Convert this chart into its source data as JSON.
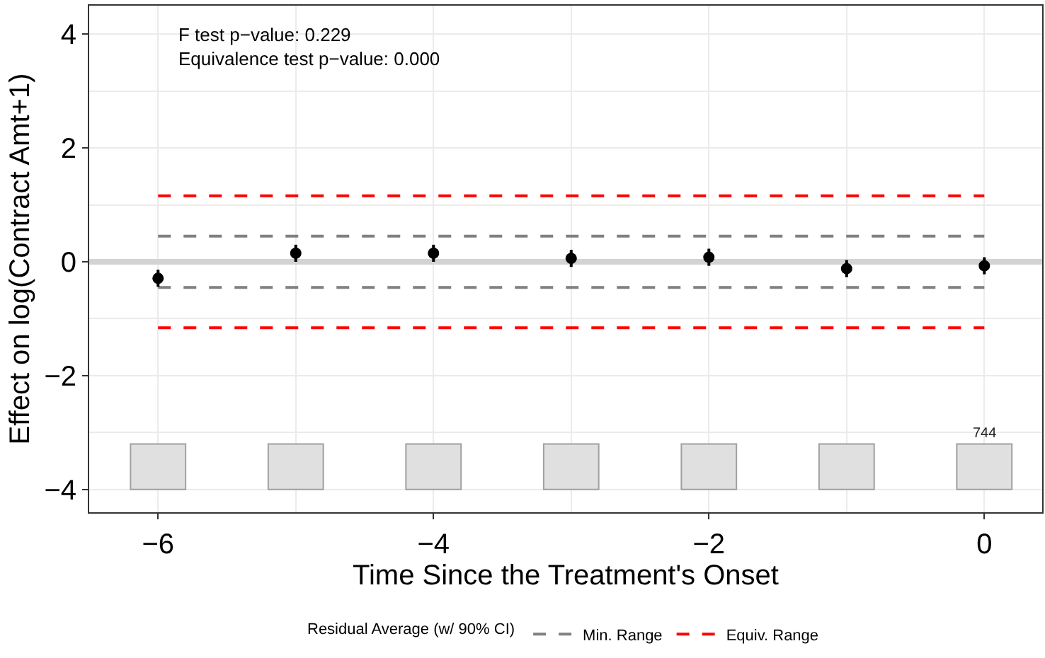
{
  "chart_data": {
    "type": "scatter",
    "xlabel": "Time Since the Treatment's Onset",
    "ylabel": "Effect on log(Contract Amt+1)",
    "legend_title": "Residual Average (w/ 90% CI)",
    "x": [
      -6,
      -5,
      -4,
      -3,
      -2,
      -1,
      0
    ],
    "series": [
      {
        "type": "bar",
        "color": "#e0e0e0",
        "values": [
          0.8,
          0.8,
          0.8,
          0.8,
          0.8,
          0.8,
          0.8
        ],
        "base": [
          -4,
          -4,
          -4,
          -4,
          -4,
          -4,
          -4
        ]
      },
      {
        "color": "#000000",
        "values": [
          -0.29,
          0.15,
          0.15,
          0.06,
          0.08,
          -0.12,
          -0.07
        ],
        "errors": [
          0.15,
          0.15,
          0.15,
          0.15,
          0.15,
          0.15,
          0.15
        ]
      }
    ],
    "xlim": [
      -6.5,
      0.42
    ],
    "xticks": [
      {
        "value": -6,
        "label": "−6"
      },
      {
        "value": -4,
        "label": "−4"
      },
      {
        "value": -2,
        "label": "−2"
      },
      0
    ],
    "ylim": [
      -4.4,
      4.5
    ],
    "yticks": [
      {
        "value": -4,
        "label": "−4"
      },
      {
        "value": -2,
        "label": "−2"
      },
      0,
      2,
      4
    ],
    "ref_lines": [
      {
        "axis": "y",
        "value": 0,
        "color": "#d3d3d3",
        "line_style": "solid"
      },
      {
        "axis": "y",
        "value": 0.45,
        "label": "Min. Range",
        "color": "#808080",
        "line_style": "dashed"
      },
      {
        "axis": "y",
        "value": -0.45,
        "color": "#808080",
        "line_style": "dashed"
      },
      {
        "axis": "y",
        "value": 1.16,
        "label": "Equiv. Range",
        "color": "#ff0000",
        "line_style": "dashed"
      },
      {
        "axis": "y",
        "value": -1.16,
        "color": "#ff0000",
        "line_style": "dashed"
      }
    ],
    "annotations": [
      "F test p−value: 0.229\nEquivalence test p−value: 0.000",
      {
        "text": "744",
        "x": 0,
        "y": -3.2
      }
    ],
    "grid": true,
    "legend": "bottom",
    "marker": "circle"
  }
}
